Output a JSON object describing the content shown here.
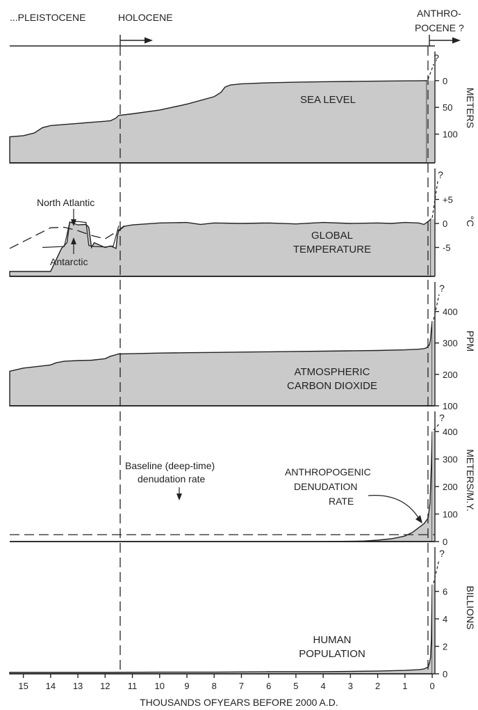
{
  "header": {
    "pleistocene": "...PLEISTOCENE",
    "holocene": "HOLOCENE",
    "anthropocene_line1": "ANTHRO-",
    "anthropocene_line2": "POCENE ?"
  },
  "xaxis": {
    "label": "THOUSANDS OFYEARS BEFORE 2000 A.D.",
    "ticks": [
      "15",
      "14",
      "13",
      "12",
      "11",
      "10",
      "9",
      "8",
      "7",
      "6",
      "5",
      "4",
      "3",
      "2",
      "1",
      "0"
    ],
    "range": [
      15.5,
      -0.1
    ]
  },
  "question_mark": "?",
  "annotations": {
    "north_atlantic": "North Atlantic",
    "antarctic": "Antarctic",
    "baseline_line1": "Baseline (deep-time)",
    "baseline_line2": "denudation rate",
    "anthro_line1": "ANTHROPOGENIC",
    "anthro_line2": "DENUDATION",
    "anthro_line3": "RATE"
  },
  "chart_data": [
    {
      "type": "area",
      "title_lines": [
        "SEA LEVEL"
      ],
      "unit": "METERS",
      "inverted": true,
      "ylim": [
        -5,
        120
      ],
      "ticks": [
        {
          "v": 0,
          "label": "0"
        },
        {
          "v": 50,
          "label": "50"
        },
        {
          "v": 100,
          "label": "100"
        }
      ],
      "x": [
        15.5,
        15.0,
        14.6,
        14.3,
        14.0,
        13.5,
        13.0,
        12.5,
        12.0,
        11.8,
        11.6,
        11.5,
        11.0,
        10.0,
        9.0,
        8.0,
        7.75,
        7.6,
        7.4,
        7.0,
        6.0,
        5.0,
        4.0,
        3.0,
        2.0,
        1.0,
        0.5,
        0.2
      ],
      "y": [
        105,
        103,
        98,
        88,
        84,
        82,
        80,
        78,
        76,
        75,
        70,
        65,
        62,
        55,
        44,
        30,
        22,
        12,
        8,
        6,
        4,
        3,
        2,
        1.5,
        1,
        0.5,
        0.3,
        0
      ]
    },
    {
      "type": "area",
      "title_lines": [
        "GLOBAL",
        "TEMPERATURE"
      ],
      "unit": "°C",
      "ylim": [
        -10,
        10
      ],
      "ticks": [
        {
          "v": 5,
          "label": "+5"
        },
        {
          "v": 0,
          "label": "0"
        },
        {
          "v": -5,
          "label": "-5"
        }
      ],
      "x": [
        15.5,
        15.0,
        14.5,
        14.0,
        13.6,
        13.4,
        13.3,
        13.0,
        12.7,
        12.6,
        12.5,
        12.4,
        12.2,
        12.0,
        11.8,
        11.6,
        11.55,
        11.5,
        11.3,
        11.0,
        10.0,
        9.0,
        8.5,
        8.0,
        7.0,
        6.0,
        5.0,
        4.0,
        3.0,
        2.0,
        1.5,
        1.0,
        0.5,
        0.3,
        0.15,
        0.05
      ],
      "y": [
        -10,
        -10,
        -10,
        -10,
        -5.2,
        -4.0,
        0.3,
        -0.3,
        -0.2,
        -0.8,
        -5.0,
        -4.0,
        -4.5,
        -5.0,
        -4.7,
        -5.2,
        -2.5,
        -1.5,
        -0.6,
        -0.3,
        0.1,
        0.2,
        -0.2,
        0.1,
        0.0,
        0.1,
        -0.1,
        0.2,
        0.0,
        0.1,
        0.0,
        0.2,
        0.1,
        -0.2,
        0.4,
        0.9
      ],
      "north_atlantic": {
        "x": [
          14.3,
          13.5,
          13.3,
          13.0,
          12.7,
          12.6,
          12.4,
          12.0,
          11.7,
          11.5
        ],
        "y": [
          -5.0,
          -4.8,
          0.2,
          0.4,
          0.2,
          -4.6,
          -4.8,
          -4.9,
          -4.7,
          -0.5
        ]
      },
      "trend": {
        "x": [
          15.5,
          14.8,
          14.0,
          13.5,
          13.0,
          12.5,
          12.0,
          11.6,
          11.3
        ],
        "y": [
          -5.2,
          -3.2,
          -0.9,
          -0.8,
          -1.5,
          -2.5,
          -3.2,
          -1.8,
          -0.5
        ]
      }
    },
    {
      "type": "area",
      "title_lines": [
        "ATMOSPHERIC",
        "CARBON DIOXIDE"
      ],
      "unit": "PPM",
      "ylim": [
        100,
        450
      ],
      "ticks": [
        {
          "v": 400,
          "label": "400"
        },
        {
          "v": 300,
          "label": "300"
        },
        {
          "v": 200,
          "label": "200"
        },
        {
          "v": 100,
          "label": "100"
        }
      ],
      "x": [
        15.5,
        15.0,
        14.5,
        14.0,
        13.8,
        13.5,
        13.0,
        12.5,
        12.0,
        11.8,
        11.5,
        11.0,
        10.0,
        9.0,
        8.0,
        7.0,
        6.0,
        5.0,
        4.0,
        3.0,
        2.0,
        1.0,
        0.5,
        0.3,
        0.2,
        0.1,
        0.06,
        0.03,
        0.0
      ],
      "y": [
        210,
        220,
        225,
        230,
        237,
        242,
        244,
        245,
        250,
        258,
        265,
        266,
        268,
        269,
        270,
        271,
        272,
        273,
        274,
        275,
        276,
        278,
        280,
        282,
        285,
        295,
        312,
        345,
        370
      ]
    },
    {
      "type": "area",
      "title_lines": [],
      "unit": "METERS/M.Y.",
      "ylim": [
        0,
        420
      ],
      "ticks": [
        {
          "v": 400,
          "label": "400"
        },
        {
          "v": 300,
          "label": "300"
        },
        {
          "v": 200,
          "label": "200"
        },
        {
          "v": 100,
          "label": "100"
        },
        {
          "v": 0,
          "label": "0"
        }
      ],
      "x": [
        15.5,
        11.0,
        8.0,
        6.0,
        4.0,
        3.0,
        2.5,
        2.0,
        1.5,
        1.0,
        0.7,
        0.5,
        0.3,
        0.15,
        0.08,
        0.03,
        0.0
      ],
      "y": [
        0,
        0,
        0,
        0,
        0,
        1,
        2,
        5,
        10,
        20,
        35,
        50,
        65,
        85,
        140,
        280,
        400
      ],
      "baseline_rate": 25
    },
    {
      "type": "area",
      "title_lines": [
        "HUMAN",
        "POPULATION"
      ],
      "unit": "BILLIONS",
      "ylim": [
        0,
        7.5
      ],
      "ticks": [
        {
          "v": 6,
          "label": "6"
        },
        {
          "v": 4,
          "label": "4"
        },
        {
          "v": 2,
          "label": "2"
        },
        {
          "v": 0,
          "label": "0"
        }
      ],
      "x": [
        15.5,
        12.0,
        10.0,
        8.0,
        6.0,
        4.0,
        2.0,
        1.0,
        0.5,
        0.3,
        0.15,
        0.1,
        0.06,
        0.03,
        0.015,
        0.0
      ],
      "y": [
        0.1,
        0.1,
        0.12,
        0.12,
        0.15,
        0.15,
        0.2,
        0.25,
        0.3,
        0.35,
        0.5,
        0.8,
        1.2,
        2.5,
        4.5,
        6.5
      ]
    }
  ]
}
